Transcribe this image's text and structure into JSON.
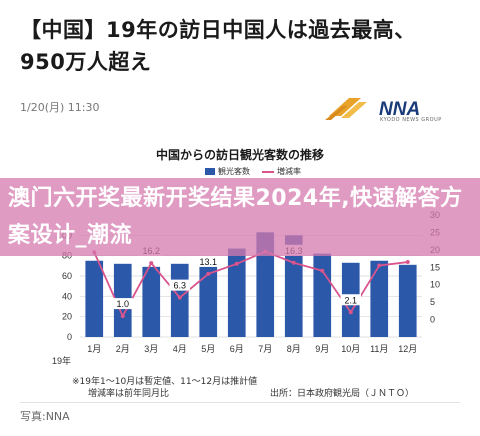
{
  "article": {
    "headline_line1": "【中国】19年の訪日中国人は過去最高、",
    "headline_line2": "950万人超え",
    "timestamp": "1/20(月) 11:30",
    "photo_credit": "写真:NNA"
  },
  "logo": {
    "text": "NNA",
    "subtext": "KYODO NEWS GROUP"
  },
  "overlay": {
    "line1": "澳门六开奖最新开奖结果2024年,快速解答方案设计_潮流"
  },
  "chart_data": {
    "type": "bar",
    "title": "中国からの訪日観光客数の推移",
    "legend": [
      "観光客数",
      "増減率"
    ],
    "categories": [
      "1月",
      "2月",
      "3月",
      "4月",
      "5月",
      "6月",
      "7月",
      "8月",
      "9月",
      "10月",
      "11月",
      "12月"
    ],
    "year_label": "19年",
    "series": [
      {
        "name": "観光客数",
        "type": "bar",
        "color": "#2b58a8",
        "values": [
          75,
          72,
          69,
          72,
          75,
          87,
          103,
          100,
          82,
          73,
          75,
          71
        ]
      },
      {
        "name": "増減率",
        "type": "line",
        "color": "#d9548d",
        "values": [
          19.3,
          1.0,
          16.2,
          6.3,
          13.1,
          16.0,
          19.5,
          16.3,
          14.0,
          2.1,
          15.5,
          16.5
        ]
      }
    ],
    "data_labels": [
      {
        "index": 1,
        "text": "1.0"
      },
      {
        "index": 2,
        "text": "16.2"
      },
      {
        "index": 3,
        "text": "6.3"
      },
      {
        "index": 4,
        "text": "13.1"
      },
      {
        "index": 7,
        "text": "16.3"
      },
      {
        "index": 9,
        "text": "2.1"
      }
    ],
    "left_axis": {
      "ticks": [
        0,
        20,
        40,
        60,
        80,
        100
      ],
      "range": [
        0,
        120
      ]
    },
    "right_axis": {
      "ticks": [
        0,
        5,
        10,
        15,
        20,
        25,
        30
      ],
      "range": [
        -5,
        30
      ]
    },
    "notes": {
      "estimate": "※19年1〜10月は暫定値、11〜12月は推計値",
      "rate": "増減率は前年同月比",
      "source": "出所：日本政府観光局（ＪＮＴＯ）"
    }
  }
}
